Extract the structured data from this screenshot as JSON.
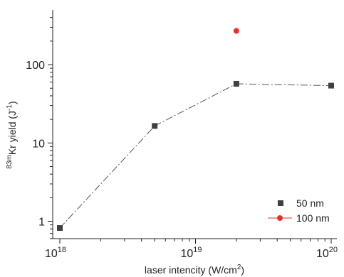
{
  "chart_data": {
    "type": "scatter",
    "xscale": "log",
    "yscale": "log",
    "xlim": [
      1e+18,
      1e+20
    ],
    "ylim": [
      0.6,
      500
    ],
    "xticks": [
      {
        "value": 1e+18,
        "base": "10",
        "exp": "18"
      },
      {
        "value": 1e+19,
        "base": "10",
        "exp": "19"
      },
      {
        "value": 1e+20,
        "base": "10",
        "exp": "20"
      }
    ],
    "yticks": [
      {
        "value": 1,
        "label": "1"
      },
      {
        "value": 10,
        "label": "10"
      },
      {
        "value": 100,
        "label": "100"
      }
    ],
    "xlabel": {
      "prefix": "laser intencity (W/cm",
      "sup": "2",
      "suffix": ")"
    },
    "ylabel": {
      "pre_sup": "83m",
      "main": "Kr yield (J",
      "sup": "-1",
      "suffix": ")"
    },
    "legend_position": "bottom-right",
    "series": [
      {
        "name": "50 nm",
        "color": "#404040",
        "marker": "square",
        "line": "dashed",
        "x": [
          1e+18,
          5e+18,
          2e+19,
          1e+20
        ],
        "y": [
          0.82,
          16.5,
          57,
          54
        ]
      },
      {
        "name": "100 nm",
        "color": "#e8302a",
        "marker": "circle",
        "line": "solid",
        "x": [
          2e+19
        ],
        "y": [
          270
        ]
      }
    ]
  }
}
